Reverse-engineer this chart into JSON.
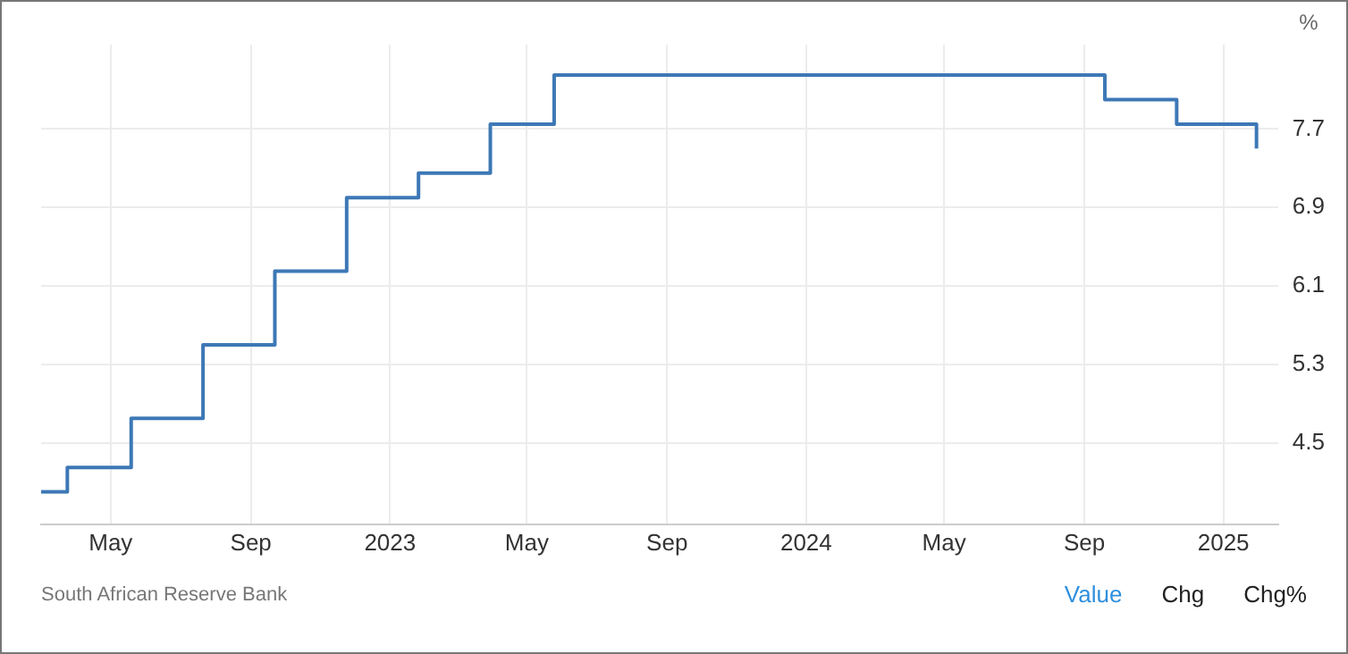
{
  "chart_data": {
    "type": "step",
    "ylabel": "%",
    "x": [
      "2022-03-01",
      "2022-03-24",
      "2022-05-19",
      "2022-07-21",
      "2022-09-22",
      "2022-11-24",
      "2023-01-26",
      "2023-03-30",
      "2023-05-25",
      "2024-09-19",
      "2024-11-21",
      "2025-01-30"
    ],
    "series": [
      {
        "color": "#3d78b6",
        "values": [
          4.0,
          4.25,
          4.75,
          5.5,
          6.25,
          7.0,
          7.25,
          7.75,
          8.25,
          8.0,
          7.75,
          7.5
        ]
      }
    ],
    "xlim": [
      "2022-03-01",
      "2025-02-18"
    ],
    "xticks": [
      {
        "value": "2022-05-01",
        "label": "May"
      },
      {
        "value": "2022-09-01",
        "label": "Sep"
      },
      {
        "value": "2023-01-01",
        "label": "2023"
      },
      {
        "value": "2023-05-01",
        "label": "May"
      },
      {
        "value": "2023-09-01",
        "label": "Sep"
      },
      {
        "value": "2024-01-01",
        "label": "2024"
      },
      {
        "value": "2024-05-01",
        "label": "May"
      },
      {
        "value": "2024-09-01",
        "label": "Sep"
      },
      {
        "value": "2025-01-01",
        "label": "2025"
      }
    ],
    "ylim": [
      3.67,
      8.56
    ],
    "yticks": [
      4.5,
      5.3,
      6.1,
      6.9,
      7.7
    ],
    "grid": true,
    "annotations": [
      "South African Reserve Bank",
      "Value",
      "Chg",
      "Chg%"
    ]
  }
}
